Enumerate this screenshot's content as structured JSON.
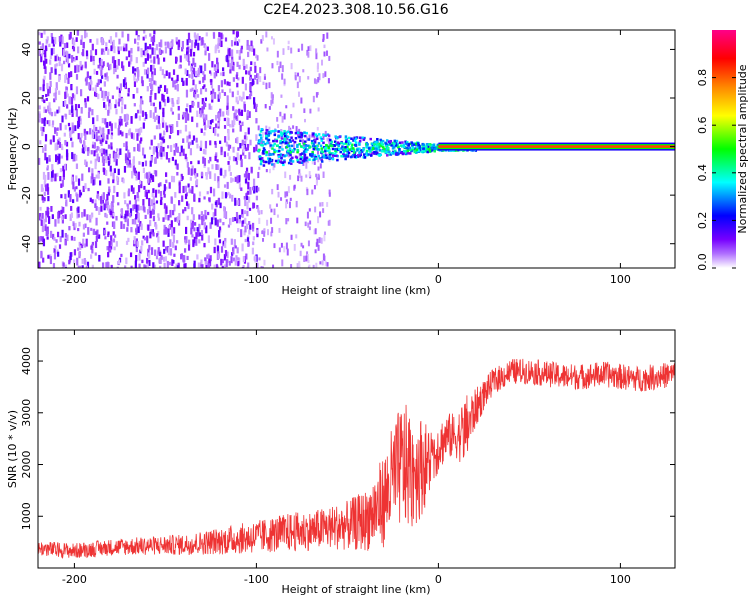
{
  "title": "C2E4.2023.308.10.56.G16",
  "chart_data": [
    {
      "type": "heatmap",
      "title": "C2E4.2023.308.10.56.G16",
      "xlabel": "Height of straight line (km)",
      "ylabel": "Frequency (Hz)",
      "xlim": [
        -220,
        130
      ],
      "ylim": [
        -50,
        48
      ],
      "xticks": [
        -200,
        -100,
        0,
        100
      ],
      "yticks": [
        -40,
        -20,
        0,
        20,
        40
      ],
      "colorbar": {
        "label": "Normalized spectral amplitude",
        "range": [
          0,
          1
        ],
        "ticks": [
          "0.0",
          "0.2",
          "0.4",
          "0.6",
          "0.8"
        ],
        "colors": [
          "#ffffff",
          "#8800ff",
          "#0000ff",
          "#00ffff",
          "#00ff00",
          "#ffff00",
          "#ff8800",
          "#ff0000",
          "#ff0088"
        ]
      },
      "features": [
        {
          "label": "broadband noise",
          "x_range": [
            -220,
            -100
          ],
          "freq_range": [
            -50,
            48
          ],
          "amplitude": 0.15
        },
        {
          "label": "sparse noise",
          "x_range": [
            -100,
            -60
          ],
          "freq_range": [
            -50,
            48
          ],
          "amplitude": 0.05
        },
        {
          "label": "signal line",
          "x_range": [
            -100,
            130
          ],
          "freq_hz": 0,
          "amplitude": 0.95
        }
      ]
    },
    {
      "type": "line",
      "xlabel": "Height of straight line (km)",
      "ylabel": "SNR (10 * v/v)",
      "xlim": [
        -220,
        130
      ],
      "ylim": [
        0,
        4600
      ],
      "xticks": [
        -200,
        -100,
        0,
        100
      ],
      "yticks": [
        1000,
        2000,
        3000,
        4000
      ],
      "series": [
        {
          "name": "SNR",
          "color": "#ee3333",
          "x": [
            -220,
            -200,
            -180,
            -160,
            -140,
            -120,
            -100,
            -90,
            -80,
            -70,
            -60,
            -50,
            -40,
            -30,
            -25,
            -20,
            -15,
            -10,
            -5,
            0,
            5,
            10,
            15,
            20,
            25,
            30,
            40,
            50,
            60,
            70,
            80,
            90,
            100,
            110,
            120,
            130
          ],
          "y": [
            380,
            330,
            400,
            430,
            450,
            520,
            600,
            650,
            700,
            720,
            780,
            820,
            920,
            1300,
            1700,
            2000,
            1900,
            1950,
            2050,
            2350,
            2550,
            2550,
            2650,
            3050,
            3350,
            3600,
            3800,
            3800,
            3750,
            3700,
            3700,
            3750,
            3700,
            3650,
            3700,
            3750
          ],
          "noise": [
            150,
            150,
            160,
            180,
            200,
            260,
            320,
            350,
            380,
            380,
            420,
            480,
            600,
            900,
            1100,
            1200,
            1200,
            1000,
            700,
            500,
            450,
            450,
            700,
            400,
            300,
            250,
            250,
            250,
            250,
            250,
            250,
            250,
            250,
            250,
            250,
            250
          ]
        }
      ]
    }
  ]
}
